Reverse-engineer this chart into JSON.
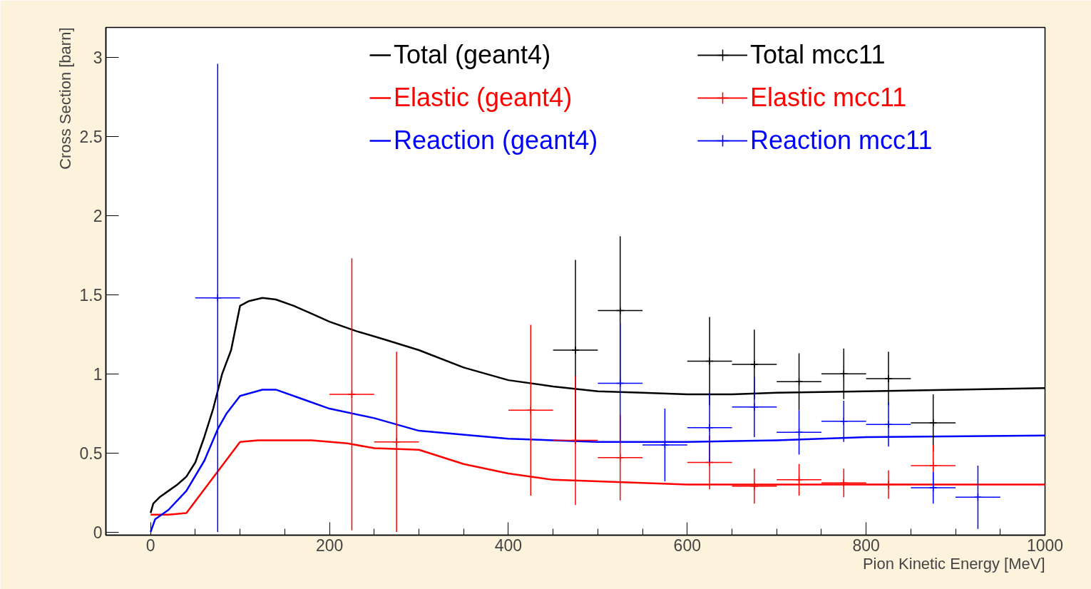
{
  "chart_data": {
    "type": "line",
    "xlabel": "Pion Kinetic Energy [MeV]",
    "ylabel": "Cross Section [barn]",
    "xlim": [
      -50,
      1000
    ],
    "ylim": [
      -0.02,
      3.19
    ],
    "xticks": [
      0,
      200,
      400,
      600,
      800,
      1000
    ],
    "yticks": [
      0,
      0.5,
      1,
      1.5,
      2,
      2.5,
      3
    ],
    "legend": "top",
    "grid": false,
    "marker": "none",
    "series": [
      {
        "name": "Total (geant4)",
        "color": "#000000",
        "x": [
          0,
          3,
          10,
          20,
          30,
          40,
          50,
          60,
          70,
          80,
          90,
          100,
          110,
          125,
          140,
          160,
          180,
          200,
          230,
          260,
          300,
          350,
          400,
          450,
          500,
          550,
          600,
          650,
          700,
          800,
          900,
          1000
        ],
        "values": [
          0.12,
          0.18,
          0.22,
          0.26,
          0.3,
          0.35,
          0.44,
          0.6,
          0.78,
          1.0,
          1.15,
          1.43,
          1.46,
          1.48,
          1.47,
          1.43,
          1.38,
          1.33,
          1.27,
          1.22,
          1.15,
          1.04,
          0.96,
          0.92,
          0.89,
          0.88,
          0.87,
          0.87,
          0.88,
          0.89,
          0.9,
          0.91
        ]
      },
      {
        "name": "Elastic (geant4)",
        "color": "#ff0000",
        "x": [
          0,
          20,
          40,
          60,
          80,
          100,
          120,
          180,
          220,
          250,
          300,
          350,
          400,
          450,
          500,
          600,
          1000
        ],
        "values": [
          0.11,
          0.11,
          0.12,
          0.27,
          0.42,
          0.57,
          0.58,
          0.58,
          0.56,
          0.53,
          0.52,
          0.43,
          0.37,
          0.33,
          0.32,
          0.3,
          0.3
        ]
      },
      {
        "name": "Reaction (geant4)",
        "color": "#0000ff",
        "x": [
          0,
          5,
          20,
          40,
          60,
          75,
          85,
          100,
          125,
          140,
          170,
          200,
          250,
          300,
          400,
          500,
          600,
          700,
          800,
          1000
        ],
        "values": [
          0.0,
          0.08,
          0.14,
          0.26,
          0.45,
          0.65,
          0.75,
          0.86,
          0.9,
          0.9,
          0.84,
          0.78,
          0.72,
          0.64,
          0.59,
          0.57,
          0.57,
          0.58,
          0.6,
          0.61
        ]
      },
      {
        "name": "Total mcc11",
        "type": "scatter",
        "marker": "cross",
        "color": "#000000",
        "x": [
          475,
          525,
          625,
          675,
          725,
          775,
          825,
          875
        ],
        "values": [
          1.15,
          1.4,
          1.08,
          1.06,
          0.95,
          1.0,
          0.97,
          0.69
        ],
        "errors": [
          0.57,
          0.47,
          0.28,
          0.22,
          0.18,
          0.16,
          0.17,
          0.18
        ],
        "xerrors": [
          25,
          25,
          25,
          25,
          25,
          25,
          25,
          25
        ]
      },
      {
        "name": "Elastic mcc11",
        "type": "scatter",
        "marker": "cross",
        "color": "#ff0000",
        "x": [
          225,
          275,
          425,
          475,
          525,
          625,
          675,
          725,
          775,
          825,
          875
        ],
        "values": [
          0.87,
          0.57,
          0.77,
          0.58,
          0.47,
          0.44,
          0.29,
          0.33,
          0.31,
          0.3,
          0.42
        ],
        "errors": [
          0.86,
          0.57,
          0.54,
          0.41,
          0.27,
          0.17,
          0.11,
          0.1,
          0.09,
          0.09,
          0.13
        ],
        "xerrors": [
          25,
          25,
          25,
          25,
          25,
          25,
          25,
          25,
          25,
          25,
          25
        ]
      },
      {
        "name": "Reaction mcc11",
        "type": "scatter",
        "marker": "cross",
        "color": "#0000ff",
        "x": [
          75,
          525,
          575,
          625,
          675,
          725,
          775,
          825,
          875,
          925
        ],
        "values": [
          1.48,
          0.94,
          0.55,
          0.66,
          0.79,
          0.63,
          0.7,
          0.68,
          0.28,
          0.22
        ],
        "errors": [
          1.48,
          0.38,
          0.23,
          0.22,
          0.19,
          0.14,
          0.13,
          0.14,
          0.1,
          0.2
        ],
        "xerrors": [
          25,
          25,
          25,
          25,
          25,
          25,
          25,
          25,
          25,
          25
        ]
      }
    ]
  }
}
